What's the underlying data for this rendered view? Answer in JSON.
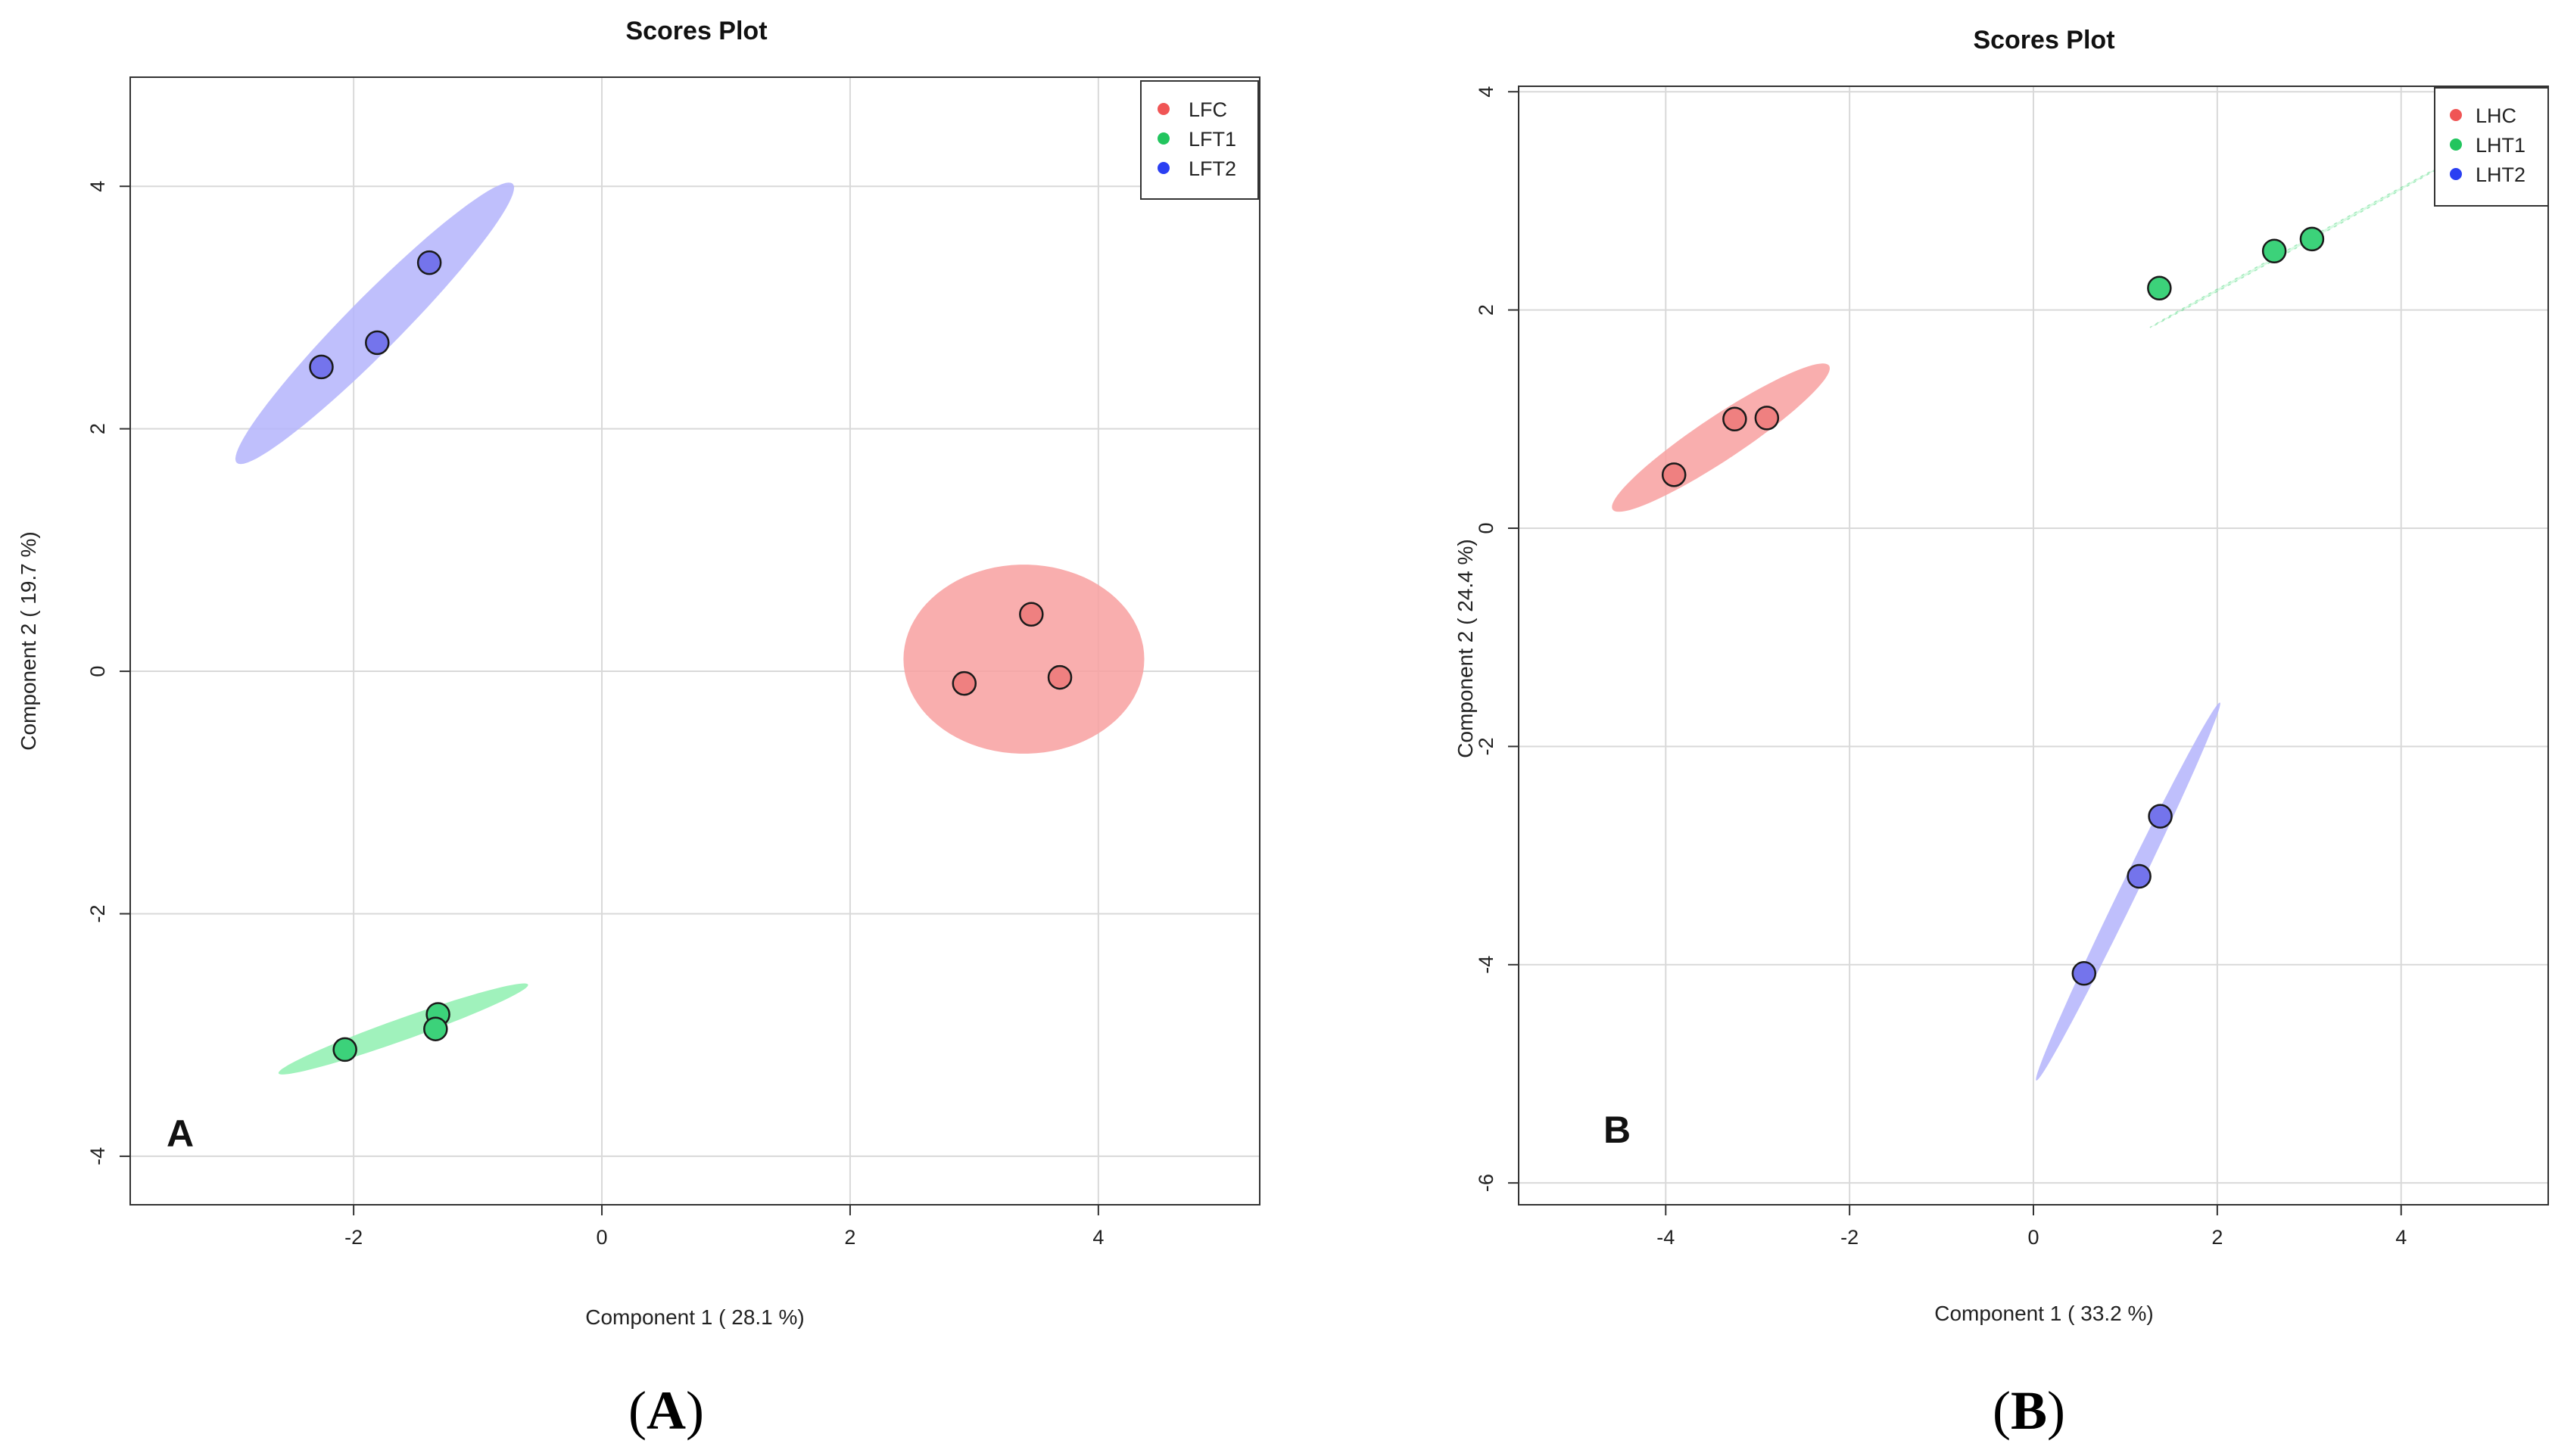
{
  "colors": {
    "group1": "#f05555",
    "group2": "#22c55e",
    "group3": "#2a3ff2",
    "group1_fill": "#f8a0a0",
    "group2_fill": "#8ff0b0",
    "group3_fill": "#b4b4fb",
    "group1_point": "#ef8080",
    "group2_point": "#3cd27a",
    "group3_point": "#7474ec",
    "grid": "#d9d9d9"
  },
  "chart_data": [
    {
      "type": "scatter",
      "title": "Scores Plot",
      "xlabel": "Component 1 ( 28.1 %)",
      "ylabel": "Component 2 ( 19.7 %)",
      "xlim": [
        -3.8,
        5.3
      ],
      "ylim": [
        -4.4,
        4.9
      ],
      "xticks": [
        -2,
        0,
        2,
        4
      ],
      "yticks": [
        -4,
        -2,
        0,
        2,
        4
      ],
      "grid": true,
      "legend_position": "top-right",
      "panel_label": "A",
      "caption": "A",
      "series": [
        {
          "name": "LFC",
          "points": [
            [
              2.92,
              -0.1
            ],
            [
              3.46,
              0.47
            ],
            [
              3.69,
              -0.05
            ]
          ],
          "ellipse": {
            "center": [
              3.4,
              0.1
            ],
            "semi_axes": [
              0.97,
              0.78
            ],
            "angle_deg": 0
          }
        },
        {
          "name": "LFT1",
          "points": [
            [
              -2.07,
              -3.12
            ],
            [
              -1.32,
              -2.83
            ],
            [
              -1.34,
              -2.95
            ]
          ],
          "ellipse": {
            "center": [
              -1.6,
              -2.95
            ],
            "semi_axes": [
              1.07,
              0.09
            ],
            "angle_deg": 20
          }
        },
        {
          "name": "LFT2",
          "points": [
            [
              -2.26,
              2.51
            ],
            [
              -1.81,
              2.71
            ],
            [
              -1.39,
              3.37
            ]
          ],
          "ellipse": {
            "center": [
              -1.83,
              2.87
            ],
            "semi_axes": [
              1.6,
              0.22
            ],
            "angle_deg": 46
          }
        }
      ]
    },
    {
      "type": "scatter",
      "title": "Scores Plot",
      "xlabel": "Component 1 ( 33.2 %)",
      "ylabel": "Component 2 ( 24.4 %)",
      "xlim": [
        -5.6,
        5.6
      ],
      "ylim": [
        -6.2,
        4.05
      ],
      "xticks": [
        -4,
        -2,
        0,
        2,
        4
      ],
      "yticks": [
        -6,
        -4,
        -2,
        0,
        2,
        4
      ],
      "grid": true,
      "legend_position": "top-right",
      "panel_label": "B",
      "caption": "B",
      "series": [
        {
          "name": "LHC",
          "points": [
            [
              -3.91,
              0.49
            ],
            [
              -3.25,
              1.0
            ],
            [
              -2.9,
              1.01
            ]
          ],
          "ellipse": {
            "center": [
              -3.4,
              0.83
            ],
            "semi_axes": [
              1.35,
              0.21
            ],
            "angle_deg": 29
          }
        },
        {
          "name": "LHT1",
          "points": [
            [
              1.37,
              2.2
            ],
            [
              2.62,
              2.54
            ],
            [
              3.03,
              2.65
            ]
          ],
          "ellipse": {
            "center": [
              2.9,
              2.6
            ],
            "semi_axes": [
              1.8,
              0.012
            ],
            "angle_deg": 25
          }
        },
        {
          "name": "LHT2",
          "points": [
            [
              0.55,
              -4.08
            ],
            [
              1.15,
              -3.19
            ],
            [
              1.38,
              -2.64
            ]
          ],
          "ellipse": {
            "center": [
              1.03,
              -3.33
            ],
            "semi_axes": [
              2.0,
              0.09
            ],
            "angle_deg": 60
          }
        }
      ]
    }
  ]
}
